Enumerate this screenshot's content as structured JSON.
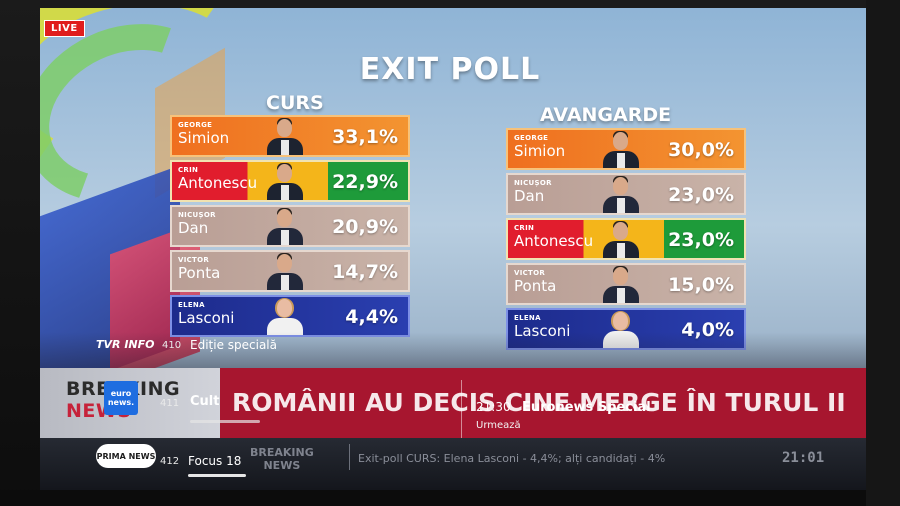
{
  "live_badge": "LIVE",
  "title": "EXIT POLL",
  "polls": [
    {
      "name": "CURS",
      "rows": [
        {
          "first": "GEORGE",
          "last": "Simion",
          "pct": "33,1%",
          "style": "orange"
        },
        {
          "first": "CRIN",
          "last": "Antonescu",
          "pct": "22,9%",
          "style": "tricolor"
        },
        {
          "first": "NICUȘOR",
          "last": "Dan",
          "pct": "20,9%",
          "style": "grey"
        },
        {
          "first": "VICTOR",
          "last": "Ponta",
          "pct": "14,7%",
          "style": "grey"
        },
        {
          "first": "ELENA",
          "last": "Lasconi",
          "pct": "4,4%",
          "style": "blue"
        }
      ]
    },
    {
      "name": "AVANGARDE",
      "rows": [
        {
          "first": "GEORGE",
          "last": "Simion",
          "pct": "30,0%",
          "style": "orange"
        },
        {
          "first": "NICUȘOR",
          "last": "Dan",
          "pct": "23,0%",
          "style": "grey"
        },
        {
          "first": "CRIN",
          "last": "Antonescu",
          "pct": "23,0%",
          "style": "tricolor"
        },
        {
          "first": "VICTOR",
          "last": "Ponta",
          "pct": "15,0%",
          "style": "grey"
        },
        {
          "first": "ELENA",
          "last": "Lasconi",
          "pct": "4,0%",
          "style": "blue"
        }
      ]
    }
  ],
  "epg": {
    "channels": [
      {
        "logo": "TVR INFO",
        "number": "410",
        "program": "Ediție specială"
      },
      {
        "logo": "euro news.",
        "number": "411",
        "program": "Cult"
      },
      {
        "logo": "PRIMA NEWS",
        "number": "412",
        "program": "Focus 18"
      }
    ],
    "now_time": "21:30",
    "now_title": "Euronews Special",
    "next_label": "Urmează"
  },
  "broadcast": {
    "breaking_1": "BREAKING",
    "breaking_2": "NEWS",
    "headline": "ROMÂNII AU DECIS CINE MERGE ÎN TURUL II",
    "ticker_breaking_1": "BREAKING",
    "ticker_breaking_2": "NEWS",
    "ticker_text": "Exit-poll CURS: Elena Lasconi - 4,4%; alți candidați - 4%",
    "clock": "21:01"
  }
}
